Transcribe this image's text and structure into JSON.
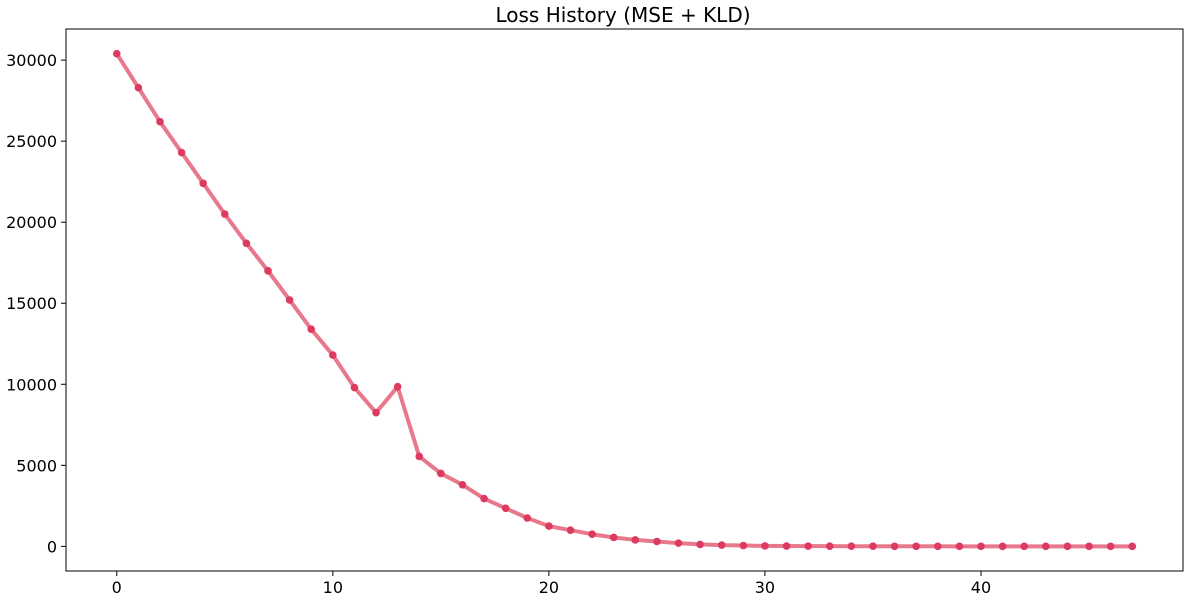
{
  "chart_data": {
    "type": "line",
    "title": "Loss History (MSE + KLD)",
    "xlabel": "",
    "ylabel": "",
    "xlim": [
      -2.35,
      49.35
    ],
    "ylim": [
      -1520,
      31920
    ],
    "x_ticks": [
      0,
      10,
      20,
      30,
      40
    ],
    "y_ticks": [
      0,
      5000,
      10000,
      15000,
      20000,
      25000,
      30000
    ],
    "grid": false,
    "legend": "none",
    "series": [
      {
        "line_color": "#e8788c",
        "marker_color": "#dc3a5e",
        "x": [
          0,
          1,
          2,
          3,
          4,
          5,
          6,
          7,
          8,
          9,
          10,
          11,
          12,
          13,
          14,
          15,
          16,
          17,
          18,
          19,
          20,
          21,
          22,
          23,
          24,
          25,
          26,
          27,
          28,
          29,
          30,
          31,
          32,
          33,
          34,
          35,
          36,
          37,
          38,
          39,
          40,
          41,
          42,
          43,
          44,
          45,
          46,
          47
        ],
        "values": [
          30400,
          28300,
          26200,
          24300,
          22400,
          20500,
          18700,
          17000,
          15200,
          13400,
          11800,
          9800,
          8250,
          9850,
          5550,
          4500,
          3800,
          2950,
          2350,
          1750,
          1250,
          1000,
          750,
          550,
          400,
          300,
          200,
          120,
          80,
          50,
          30,
          20,
          15,
          12,
          10,
          8,
          6,
          5,
          4,
          3,
          3,
          2,
          2,
          2,
          1,
          1,
          1,
          1
        ]
      }
    ]
  }
}
